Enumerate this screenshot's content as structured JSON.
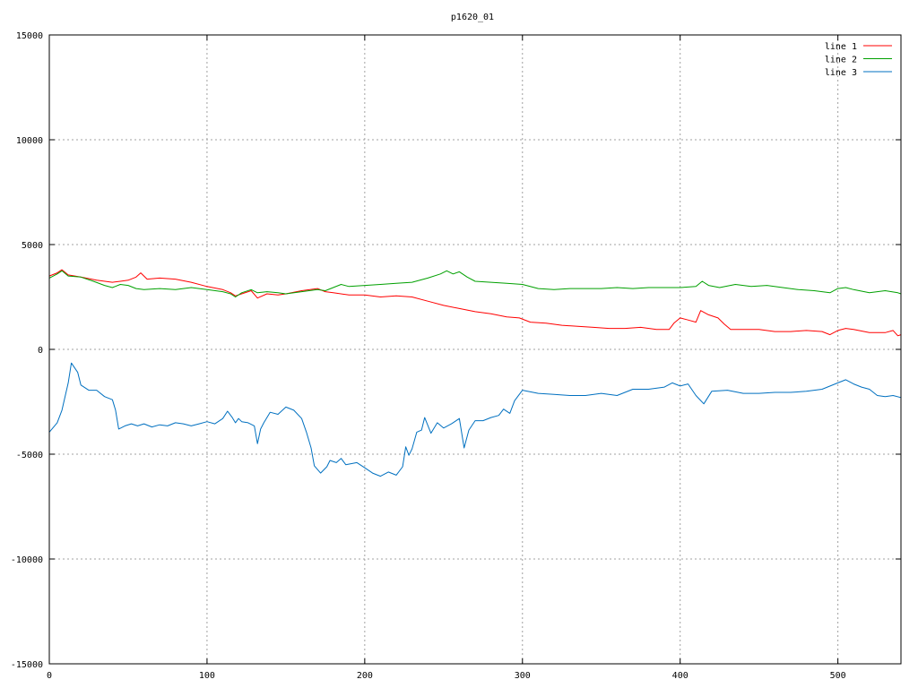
{
  "chart_data": {
    "type": "line",
    "title": "p1620_01",
    "xlabel": "",
    "ylabel": "",
    "xlim": [
      0,
      540
    ],
    "ylim": [
      -15000,
      15000
    ],
    "x_ticks": [
      0,
      100,
      200,
      300,
      400,
      500
    ],
    "y_ticks": [
      -15000,
      -10000,
      -5000,
      0,
      5000,
      10000,
      15000
    ],
    "grid": true,
    "legend_position": "top-right",
    "series": [
      {
        "name": "line 1",
        "color": "#ff0000",
        "points": [
          [
            0,
            3500
          ],
          [
            5,
            3650
          ],
          [
            8,
            3800
          ],
          [
            12,
            3550
          ],
          [
            20,
            3450
          ],
          [
            30,
            3300
          ],
          [
            40,
            3200
          ],
          [
            45,
            3250
          ],
          [
            50,
            3300
          ],
          [
            55,
            3450
          ],
          [
            58,
            3650
          ],
          [
            62,
            3350
          ],
          [
            70,
            3400
          ],
          [
            80,
            3350
          ],
          [
            90,
            3200
          ],
          [
            100,
            3000
          ],
          [
            110,
            2850
          ],
          [
            115,
            2700
          ],
          [
            118,
            2550
          ],
          [
            122,
            2650
          ],
          [
            128,
            2800
          ],
          [
            132,
            2450
          ],
          [
            138,
            2650
          ],
          [
            145,
            2600
          ],
          [
            150,
            2650
          ],
          [
            160,
            2800
          ],
          [
            170,
            2900
          ],
          [
            175,
            2750
          ],
          [
            180,
            2700
          ],
          [
            190,
            2600
          ],
          [
            200,
            2600
          ],
          [
            210,
            2500
          ],
          [
            220,
            2550
          ],
          [
            230,
            2500
          ],
          [
            240,
            2300
          ],
          [
            250,
            2100
          ],
          [
            260,
            1950
          ],
          [
            270,
            1800
          ],
          [
            280,
            1700
          ],
          [
            290,
            1550
          ],
          [
            298,
            1500
          ],
          [
            305,
            1300
          ],
          [
            315,
            1250
          ],
          [
            325,
            1150
          ],
          [
            335,
            1100
          ],
          [
            345,
            1050
          ],
          [
            355,
            1000
          ],
          [
            365,
            1000
          ],
          [
            375,
            1050
          ],
          [
            385,
            950
          ],
          [
            393,
            950
          ],
          [
            396,
            1250
          ],
          [
            400,
            1500
          ],
          [
            405,
            1400
          ],
          [
            410,
            1300
          ],
          [
            413,
            1850
          ],
          [
            418,
            1650
          ],
          [
            424,
            1500
          ],
          [
            428,
            1200
          ],
          [
            432,
            950
          ],
          [
            440,
            950
          ],
          [
            450,
            950
          ],
          [
            460,
            850
          ],
          [
            470,
            850
          ],
          [
            480,
            900
          ],
          [
            490,
            850
          ],
          [
            495,
            700
          ],
          [
            500,
            900
          ],
          [
            505,
            1000
          ],
          [
            510,
            950
          ],
          [
            520,
            800
          ],
          [
            530,
            800
          ],
          [
            535,
            900
          ],
          [
            538,
            650
          ],
          [
            540,
            700
          ]
        ]
      },
      {
        "name": "line 2",
        "color": "#00a000",
        "points": [
          [
            0,
            3400
          ],
          [
            5,
            3600
          ],
          [
            8,
            3750
          ],
          [
            12,
            3500
          ],
          [
            20,
            3450
          ],
          [
            28,
            3250
          ],
          [
            35,
            3050
          ],
          [
            40,
            2950
          ],
          [
            45,
            3100
          ],
          [
            50,
            3050
          ],
          [
            55,
            2900
          ],
          [
            60,
            2850
          ],
          [
            70,
            2900
          ],
          [
            80,
            2850
          ],
          [
            90,
            2950
          ],
          [
            100,
            2850
          ],
          [
            110,
            2750
          ],
          [
            115,
            2650
          ],
          [
            118,
            2500
          ],
          [
            122,
            2700
          ],
          [
            128,
            2850
          ],
          [
            132,
            2700
          ],
          [
            138,
            2750
          ],
          [
            145,
            2700
          ],
          [
            150,
            2650
          ],
          [
            160,
            2750
          ],
          [
            170,
            2850
          ],
          [
            175,
            2800
          ],
          [
            180,
            2950
          ],
          [
            185,
            3100
          ],
          [
            190,
            3000
          ],
          [
            200,
            3050
          ],
          [
            210,
            3100
          ],
          [
            220,
            3150
          ],
          [
            230,
            3200
          ],
          [
            240,
            3400
          ],
          [
            248,
            3600
          ],
          [
            252,
            3750
          ],
          [
            256,
            3600
          ],
          [
            260,
            3700
          ],
          [
            265,
            3450
          ],
          [
            270,
            3250
          ],
          [
            280,
            3200
          ],
          [
            290,
            3150
          ],
          [
            300,
            3100
          ],
          [
            310,
            2900
          ],
          [
            320,
            2850
          ],
          [
            330,
            2900
          ],
          [
            340,
            2900
          ],
          [
            350,
            2900
          ],
          [
            360,
            2950
          ],
          [
            370,
            2900
          ],
          [
            380,
            2950
          ],
          [
            390,
            2950
          ],
          [
            400,
            2950
          ],
          [
            410,
            3000
          ],
          [
            414,
            3250
          ],
          [
            418,
            3050
          ],
          [
            425,
            2950
          ],
          [
            435,
            3100
          ],
          [
            445,
            3000
          ],
          [
            455,
            3050
          ],
          [
            465,
            2950
          ],
          [
            475,
            2850
          ],
          [
            485,
            2800
          ],
          [
            495,
            2700
          ],
          [
            500,
            2900
          ],
          [
            505,
            2950
          ],
          [
            510,
            2850
          ],
          [
            520,
            2700
          ],
          [
            530,
            2800
          ],
          [
            538,
            2700
          ],
          [
            540,
            2650
          ]
        ]
      },
      {
        "name": "line 3",
        "color": "#0070c0",
        "points": [
          [
            0,
            -3950
          ],
          [
            5,
            -3500
          ],
          [
            8,
            -2900
          ],
          [
            12,
            -1600
          ],
          [
            14,
            -650
          ],
          [
            18,
            -1100
          ],
          [
            20,
            -1700
          ],
          [
            25,
            -1950
          ],
          [
            30,
            -1950
          ],
          [
            35,
            -2250
          ],
          [
            40,
            -2400
          ],
          [
            42,
            -2900
          ],
          [
            44,
            -3800
          ],
          [
            48,
            -3650
          ],
          [
            52,
            -3550
          ],
          [
            56,
            -3650
          ],
          [
            60,
            -3550
          ],
          [
            65,
            -3700
          ],
          [
            70,
            -3600
          ],
          [
            75,
            -3650
          ],
          [
            80,
            -3500
          ],
          [
            85,
            -3550
          ],
          [
            90,
            -3650
          ],
          [
            95,
            -3550
          ],
          [
            100,
            -3450
          ],
          [
            105,
            -3550
          ],
          [
            110,
            -3300
          ],
          [
            113,
            -2950
          ],
          [
            116,
            -3250
          ],
          [
            118,
            -3500
          ],
          [
            120,
            -3300
          ],
          [
            122,
            -3450
          ],
          [
            126,
            -3500
          ],
          [
            130,
            -3650
          ],
          [
            132,
            -4500
          ],
          [
            134,
            -3800
          ],
          [
            136,
            -3500
          ],
          [
            140,
            -3000
          ],
          [
            145,
            -3100
          ],
          [
            150,
            -2750
          ],
          [
            155,
            -2900
          ],
          [
            160,
            -3300
          ],
          [
            163,
            -3950
          ],
          [
            166,
            -4700
          ],
          [
            168,
            -5550
          ],
          [
            172,
            -5900
          ],
          [
            176,
            -5600
          ],
          [
            178,
            -5300
          ],
          [
            182,
            -5400
          ],
          [
            185,
            -5200
          ],
          [
            188,
            -5500
          ],
          [
            195,
            -5400
          ],
          [
            200,
            -5650
          ],
          [
            205,
            -5900
          ],
          [
            210,
            -6050
          ],
          [
            215,
            -5850
          ],
          [
            220,
            -6000
          ],
          [
            224,
            -5600
          ],
          [
            226,
            -4650
          ],
          [
            228,
            -5050
          ],
          [
            230,
            -4750
          ],
          [
            233,
            -3950
          ],
          [
            236,
            -3850
          ],
          [
            238,
            -3250
          ],
          [
            242,
            -4000
          ],
          [
            246,
            -3500
          ],
          [
            250,
            -3750
          ],
          [
            255,
            -3550
          ],
          [
            260,
            -3300
          ],
          [
            263,
            -4700
          ],
          [
            266,
            -3850
          ],
          [
            270,
            -3400
          ],
          [
            275,
            -3400
          ],
          [
            280,
            -3250
          ],
          [
            285,
            -3150
          ],
          [
            288,
            -2850
          ],
          [
            292,
            -3050
          ],
          [
            295,
            -2450
          ],
          [
            300,
            -1950
          ],
          [
            310,
            -2100
          ],
          [
            320,
            -2150
          ],
          [
            330,
            -2200
          ],
          [
            340,
            -2200
          ],
          [
            350,
            -2100
          ],
          [
            360,
            -2200
          ],
          [
            370,
            -1900
          ],
          [
            380,
            -1900
          ],
          [
            390,
            -1800
          ],
          [
            395,
            -1600
          ],
          [
            400,
            -1750
          ],
          [
            405,
            -1650
          ],
          [
            410,
            -2200
          ],
          [
            415,
            -2600
          ],
          [
            420,
            -2000
          ],
          [
            430,
            -1950
          ],
          [
            440,
            -2100
          ],
          [
            450,
            -2100
          ],
          [
            460,
            -2050
          ],
          [
            470,
            -2050
          ],
          [
            480,
            -2000
          ],
          [
            490,
            -1900
          ],
          [
            500,
            -1600
          ],
          [
            505,
            -1450
          ],
          [
            510,
            -1650
          ],
          [
            515,
            -1800
          ],
          [
            520,
            -1900
          ],
          [
            525,
            -2200
          ],
          [
            530,
            -2250
          ],
          [
            535,
            -2200
          ],
          [
            540,
            -2300
          ]
        ]
      }
    ]
  }
}
